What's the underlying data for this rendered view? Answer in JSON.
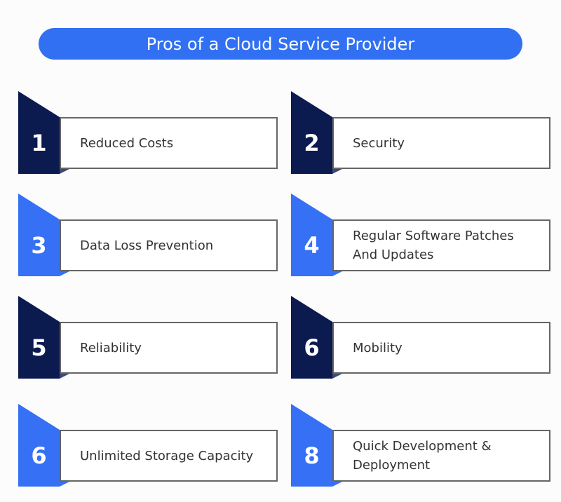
{
  "title": "Pros of a Cloud Service Provider",
  "colors": {
    "title": "#3170f3",
    "dark": "#0b1a4f",
    "blue": "#3670f5"
  },
  "items": [
    {
      "number": "1",
      "label": "Reduced Costs",
      "style": "dark"
    },
    {
      "number": "2",
      "label": "Security",
      "style": "dark"
    },
    {
      "number": "3",
      "label": "Data Loss Prevention",
      "style": "blue"
    },
    {
      "number": "4",
      "label": "Regular Software Patches And Updates",
      "style": "blue"
    },
    {
      "number": "5",
      "label": "Reliability",
      "style": "dark"
    },
    {
      "number": "6",
      "label": "Mobility",
      "style": "dark"
    },
    {
      "number": "6",
      "label": "Unlimited Storage Capacity",
      "style": "blue"
    },
    {
      "number": "8",
      "label": "Quick Development & Deployment",
      "style": "blue"
    }
  ]
}
